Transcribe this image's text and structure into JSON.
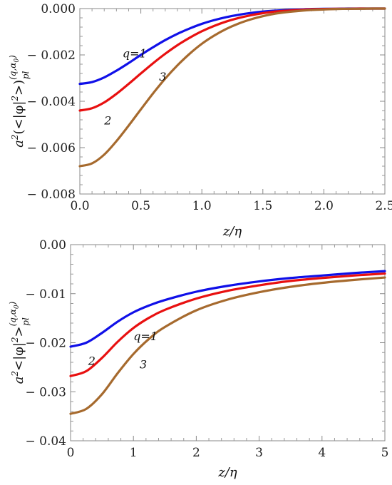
{
  "chart_data": [
    {
      "type": "line",
      "xlabel": "z/η",
      "ylabel_parts": {
        "base": "a",
        "sup1": "2",
        "mid": "(<|φ|",
        "sup2": "2",
        "end": ">)",
        "sup3": "(q,α",
        "sub3": "0",
        "sup3end": ")",
        "sub": "pl"
      },
      "xlim": [
        0,
        2.5
      ],
      "ylim": [
        -0.008,
        0.0
      ],
      "xticks": [
        0.0,
        0.5,
        1.0,
        1.5,
        2.0,
        2.5
      ],
      "xtick_labels": [
        "0.0",
        "0.5",
        "1.0",
        "1.5",
        "2.0",
        "2.5"
      ],
      "yticks": [
        -0.008,
        -0.006,
        -0.004,
        -0.002,
        0.0
      ],
      "ytick_labels": [
        "− 0.008",
        "− 0.006",
        "− 0.004",
        "− 0.002",
        "0.000"
      ],
      "x": [
        0,
        0.1,
        0.2,
        0.3,
        0.4,
        0.5,
        0.6,
        0.7,
        0.8,
        0.9,
        1.0,
        1.1,
        1.2,
        1.3,
        1.4,
        1.5,
        1.6,
        1.7,
        1.8,
        1.9,
        2.0,
        2.1,
        2.2,
        2.3,
        2.4,
        2.5
      ],
      "series": [
        {
          "label": "q=1",
          "color": "#1010e8",
          "values": [
            -0.00325,
            -0.00317,
            -0.00297,
            -0.00268,
            -0.00235,
            -0.002,
            -0.00167,
            -0.00136,
            -0.00109,
            -0.00086,
            -0.00066,
            -0.0005,
            -0.00037,
            -0.00027,
            -0.00019,
            -0.00013,
            -9e-05,
            -6e-05,
            -4e-05,
            -2e-05,
            -1e-05,
            -1e-05,
            0,
            0,
            0,
            0
          ]
        },
        {
          "label": "2",
          "color": "#e81010",
          "values": [
            -0.0044,
            -0.0043,
            -0.00405,
            -0.00368,
            -0.00325,
            -0.0028,
            -0.00236,
            -0.00195,
            -0.00158,
            -0.00126,
            -0.00098,
            -0.00075,
            -0.00056,
            -0.00041,
            -0.00029,
            -0.0002,
            -0.00013,
            -9e-05,
            -6e-05,
            -3e-05,
            -2e-05,
            -1e-05,
            -1e-05,
            0,
            0,
            0
          ]
        },
        {
          "label": "3",
          "color": "#a66a2e",
          "values": [
            -0.0068,
            -0.00668,
            -0.0063,
            -0.00572,
            -0.00505,
            -0.00435,
            -0.00366,
            -0.00302,
            -0.00245,
            -0.00195,
            -0.00152,
            -0.00117,
            -0.00088,
            -0.00065,
            -0.00047,
            -0.00033,
            -0.00022,
            -0.00015,
            -0.0001,
            -6e-05,
            -4e-05,
            -2e-05,
            -1e-05,
            -1e-05,
            0,
            0
          ]
        }
      ],
      "annotations": [
        {
          "text": "q=1",
          "x": 0.35,
          "y": -0.0021
        },
        {
          "text": "2",
          "x": 0.2,
          "y": -0.005
        },
        {
          "text": "3",
          "x": 0.65,
          "y": -0.0031
        }
      ]
    },
    {
      "type": "line",
      "xlabel": "z/η",
      "ylabel_parts": {
        "base": "a",
        "sup1": "2",
        "mid": "<|φ|",
        "sup2": "2",
        "end": ">",
        "sup3": "(q,α",
        "sub3": "0",
        "sup3end": ")",
        "sub": "pl"
      },
      "xlim": [
        0,
        5
      ],
      "ylim": [
        -0.04,
        0.0
      ],
      "xticks": [
        0,
        1,
        2,
        3,
        4,
        5
      ],
      "xtick_labels": [
        "0",
        "1",
        "2",
        "3",
        "4",
        "5"
      ],
      "yticks": [
        -0.04,
        -0.03,
        -0.02,
        -0.01,
        0.0
      ],
      "ytick_labels": [
        "− 0.04",
        "− 0.03",
        "− 0.02",
        "− 0.01",
        "0.00"
      ],
      "x": [
        0,
        0.25,
        0.5,
        0.75,
        1.0,
        1.25,
        1.5,
        2.0,
        2.5,
        3.0,
        3.5,
        4.0,
        4.5,
        5.0
      ],
      "series": [
        {
          "label": "q=1",
          "color": "#1010e8",
          "values": [
            -0.0208,
            -0.02,
            -0.018,
            -0.0157,
            -0.0138,
            -0.0124,
            -0.0113,
            -0.0096,
            -0.0084,
            -0.0075,
            -0.0068,
            -0.0063,
            -0.0058,
            -0.0054
          ]
        },
        {
          "label": "2",
          "color": "#e81010",
          "values": [
            -0.0268,
            -0.0258,
            -0.0231,
            -0.0198,
            -0.017,
            -0.0149,
            -0.0133,
            -0.011,
            -0.0094,
            -0.0083,
            -0.0074,
            -0.0068,
            -0.0063,
            -0.0059
          ]
        },
        {
          "label": "3",
          "color": "#a66a2e",
          "values": [
            -0.0345,
            -0.0335,
            -0.0305,
            -0.0262,
            -0.0223,
            -0.0192,
            -0.0168,
            -0.0134,
            -0.0112,
            -0.0097,
            -0.0086,
            -0.0078,
            -0.0072,
            -0.0067
          ]
        }
      ],
      "annotations": [
        {
          "text": "q=1",
          "x": 1.0,
          "y": -0.0195
        },
        {
          "text": "2",
          "x": 0.28,
          "y": -0.0245
        },
        {
          "text": "3",
          "x": 1.1,
          "y": -0.0252
        }
      ]
    }
  ]
}
